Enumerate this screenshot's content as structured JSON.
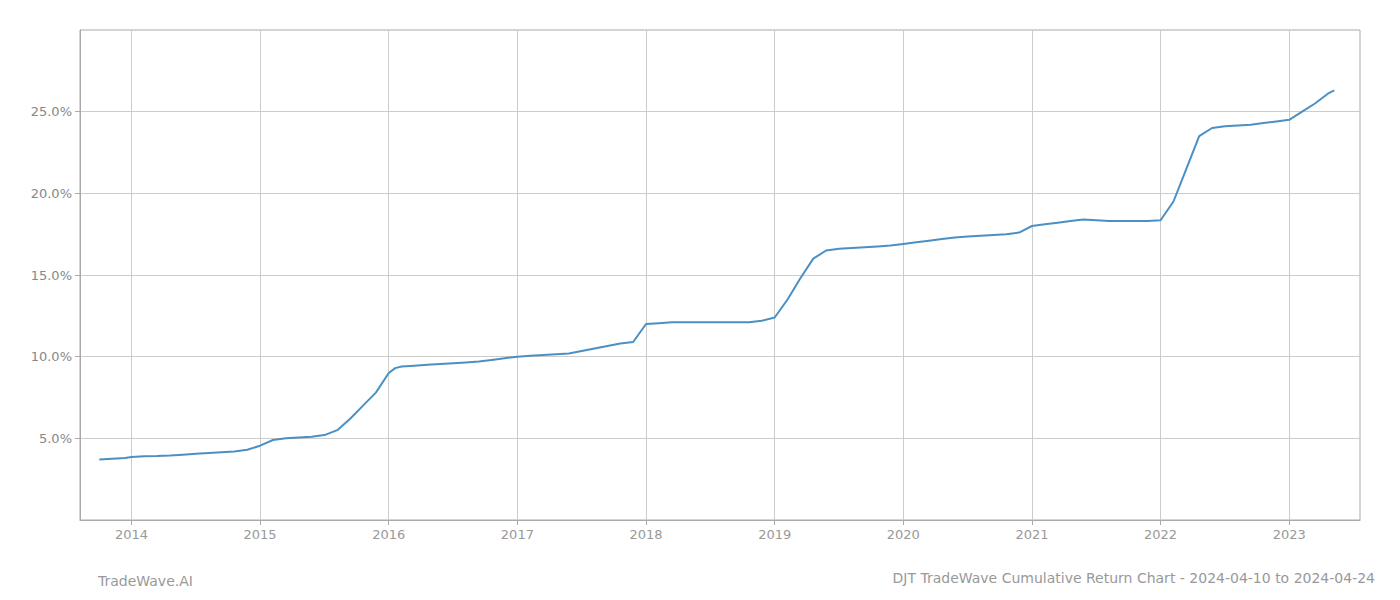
{
  "chart_data": {
    "type": "line",
    "title": "DJT TradeWave Cumulative Return Chart - 2024-04-10 to 2024-04-24",
    "annotations": [
      "TradeWave.AI"
    ],
    "x": [
      2013.75,
      2013.85,
      2013.95,
      2014.0,
      2014.1,
      2014.2,
      2014.3,
      2014.4,
      2014.5,
      2014.6,
      2014.7,
      2014.8,
      2014.9,
      2015.0,
      2015.1,
      2015.2,
      2015.3,
      2015.4,
      2015.5,
      2015.6,
      2015.7,
      2015.8,
      2015.9,
      2016.0,
      2016.05,
      2016.1,
      2016.2,
      2016.3,
      2016.4,
      2016.5,
      2016.6,
      2016.7,
      2016.8,
      2016.9,
      2017.0,
      2017.1,
      2017.2,
      2017.3,
      2017.4,
      2017.5,
      2017.6,
      2017.7,
      2017.8,
      2017.9,
      2018.0,
      2018.1,
      2018.2,
      2018.3,
      2018.4,
      2018.5,
      2018.6,
      2018.7,
      2018.8,
      2018.9,
      2019.0,
      2019.1,
      2019.2,
      2019.3,
      2019.4,
      2019.5,
      2019.6,
      2019.7,
      2019.8,
      2019.9,
      2020.0,
      2020.1,
      2020.2,
      2020.3,
      2020.4,
      2020.5,
      2020.6,
      2020.7,
      2020.8,
      2020.9,
      2021.0,
      2021.1,
      2021.2,
      2021.3,
      2021.4,
      2021.5,
      2021.6,
      2021.7,
      2021.8,
      2021.9,
      2022.0,
      2022.1,
      2022.2,
      2022.3,
      2022.4,
      2022.5,
      2022.6,
      2022.7,
      2022.8,
      2022.9,
      2023.0,
      2023.1,
      2023.2,
      2023.3,
      2023.35
    ],
    "values": [
      3.7,
      3.75,
      3.8,
      3.85,
      3.9,
      3.92,
      3.95,
      4.0,
      4.05,
      4.1,
      4.15,
      4.2,
      4.3,
      4.55,
      4.9,
      5.0,
      5.05,
      5.1,
      5.2,
      5.5,
      6.2,
      7.0,
      7.8,
      9.0,
      9.3,
      9.4,
      9.45,
      9.5,
      9.55,
      9.6,
      9.65,
      9.7,
      9.8,
      9.9,
      10.0,
      10.05,
      10.1,
      10.15,
      10.2,
      10.35,
      10.5,
      10.65,
      10.8,
      10.9,
      12.0,
      12.05,
      12.1,
      12.1,
      12.1,
      12.1,
      12.1,
      12.1,
      12.1,
      12.2,
      12.4,
      13.5,
      14.8,
      16.0,
      16.5,
      16.6,
      16.65,
      16.7,
      16.75,
      16.8,
      16.9,
      17.0,
      17.1,
      17.2,
      17.3,
      17.35,
      17.4,
      17.45,
      17.5,
      17.6,
      18.0,
      18.1,
      18.2,
      18.3,
      18.4,
      18.35,
      18.3,
      18.3,
      18.3,
      18.3,
      18.35,
      19.5,
      21.5,
      23.5,
      24.0,
      24.1,
      24.15,
      24.2,
      24.3,
      24.4,
      24.5,
      25.0,
      25.5,
      26.1,
      26.3
    ],
    "color": "#4a90c4",
    "xlim": [
      2013.6,
      2023.55
    ],
    "xticks": [
      2014,
      2015,
      2016,
      2017,
      2018,
      2019,
      2020,
      2021,
      2022,
      2023
    ],
    "ylim": [
      0,
      30
    ],
    "yticks": [
      {
        "value": 5.0,
        "label": "5.0%"
      },
      {
        "value": 10.0,
        "label": "10.0%"
      },
      {
        "value": 15.0,
        "label": "15.0%"
      },
      {
        "value": 20.0,
        "label": "20.0%"
      },
      {
        "value": 25.0,
        "label": "25.0%"
      }
    ],
    "grid": true
  }
}
